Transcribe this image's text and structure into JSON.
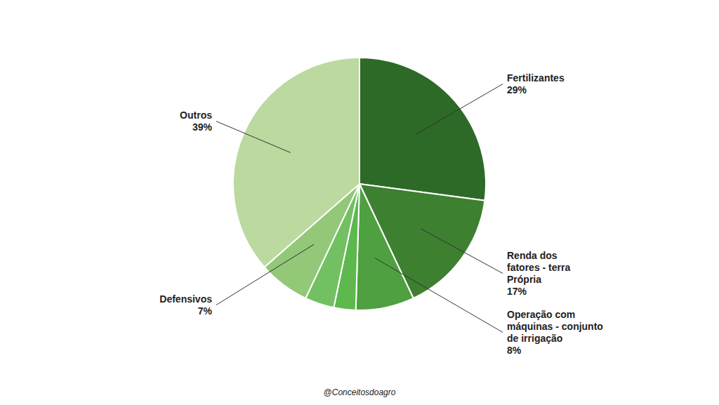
{
  "chart_data": {
    "type": "pie",
    "categories": [
      "Fertilizantes\n29%",
      "Renda dos\nfatores - terra\nPrópria\n17%",
      "Operação com\nmáquinas - conjunto\nde irrigação\n8%",
      null,
      null,
      "Defensivos\n7%",
      "Outros\n39%"
    ],
    "values": [
      29,
      17,
      8,
      3,
      4,
      7,
      39
    ],
    "colors": [
      "#2d6a27",
      "#3d8030",
      "#4fa040",
      "#5db84e",
      "#72c062",
      "#92c878",
      "#bcd9a0"
    ],
    "annotations": [
      "@Conceitosdoagro"
    ]
  }
}
